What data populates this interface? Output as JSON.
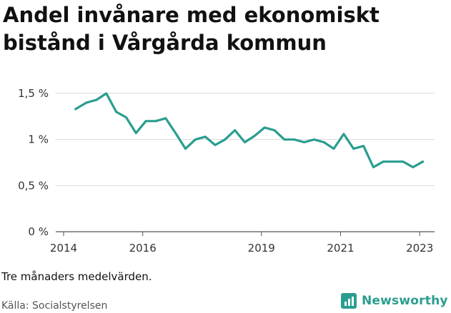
{
  "title": "Andel invånare med ekonomiskt bistånd i Vårgårda kommun",
  "note": "Tre månaders medelvärden.",
  "source": "Källa: Socialstyrelsen",
  "brand": {
    "name": "Newsworthy",
    "icon": "newsworthy-logo-icon",
    "color": "#2a9d8f"
  },
  "chart_data": {
    "type": "line",
    "title": "Andel invånare med ekonomiskt bistånd i Vårgårda kommun",
    "xlabel": "",
    "ylabel": "",
    "ylim": [
      0,
      1.5
    ],
    "yticks": [
      {
        "value": 0,
        "label": "0 %"
      },
      {
        "value": 0.5,
        "label": "0,5 %"
      },
      {
        "value": 1,
        "label": "1 %"
      },
      {
        "value": 1.5,
        "label": "1,5 %"
      }
    ],
    "xlim": [
      2014,
      2023.25
    ],
    "xticks": [
      {
        "value": 2014,
        "label": "2014"
      },
      {
        "value": 2016,
        "label": "2016"
      },
      {
        "value": 2019,
        "label": "2019"
      },
      {
        "value": 2021,
        "label": "2021"
      },
      {
        "value": 2023,
        "label": "2023"
      }
    ],
    "series": [
      {
        "name": "Andel invånare med ekonomiskt bistånd",
        "color": "#2a9d8f",
        "x": [
          2014.3,
          2014.58,
          2014.83,
          2015.08,
          2015.33,
          2015.58,
          2015.83,
          2016.08,
          2016.33,
          2016.58,
          2016.83,
          2017.08,
          2017.33,
          2017.58,
          2017.83,
          2018.08,
          2018.33,
          2018.58,
          2018.83,
          2019.08,
          2019.33,
          2019.58,
          2019.83,
          2020.08,
          2020.33,
          2020.58,
          2020.83,
          2021.08,
          2021.33,
          2021.58,
          2021.83,
          2022.08,
          2022.33,
          2022.58,
          2022.83,
          2023.08
        ],
        "values": [
          1.33,
          1.4,
          1.43,
          1.5,
          1.3,
          1.24,
          1.07,
          1.2,
          1.2,
          1.23,
          1.07,
          0.9,
          1.0,
          1.03,
          0.94,
          1.0,
          1.1,
          0.97,
          1.04,
          1.13,
          1.1,
          1.0,
          1.0,
          0.97,
          1.0,
          0.97,
          0.9,
          1.06,
          0.9,
          0.93,
          0.7,
          0.76,
          0.76,
          0.76,
          0.7,
          0.76
        ]
      }
    ]
  }
}
